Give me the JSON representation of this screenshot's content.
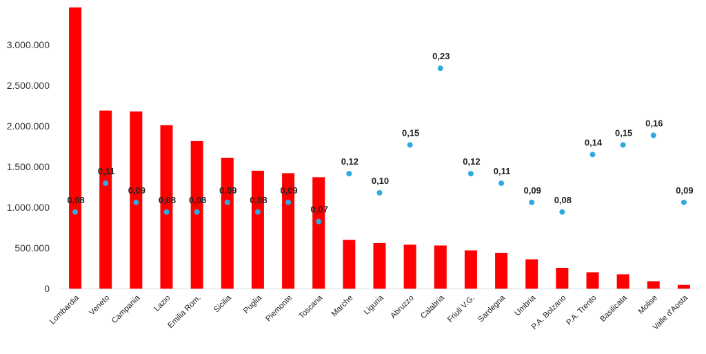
{
  "chart_data": {
    "type": "bar",
    "categories": [
      "Lombardia",
      "Veneto",
      "Campania",
      "Lazio",
      "Emilia Rom.",
      "Sicilia",
      "Puglia",
      "Piemonte",
      "Toscana",
      "Marche",
      "Liguria",
      "Abruzzo",
      "Calabria",
      "Friuli V.G.",
      "Sardegna",
      "Umbria",
      "P.A. Bolzano",
      "P.A. Trento",
      "Basilicata",
      "Molise",
      "Valle d'Aosta"
    ],
    "series": [
      {
        "type": "bar",
        "color": "#ff0000",
        "values": [
          3460000,
          2190000,
          2180000,
          2010000,
          1815000,
          1610000,
          1450000,
          1420000,
          1370000,
          600000,
          560000,
          540000,
          530000,
          470000,
          440000,
          360000,
          255000,
          200000,
          175000,
          90000,
          45000
        ]
      },
      {
        "type": "scatter",
        "color": "#2eaae1",
        "values": [
          0.08,
          0.11,
          0.09,
          0.08,
          0.08,
          0.09,
          0.08,
          0.09,
          0.07,
          0.12,
          0.1,
          0.15,
          0.23,
          0.12,
          0.11,
          0.09,
          0.08,
          0.14,
          0.15,
          0.16,
          0.09
        ],
        "labels": [
          "0,08",
          "0,11",
          "0,09",
          "0,08",
          "0,08",
          "0,09",
          "0,08",
          "0,09",
          "0,07",
          "0,12",
          "0,10",
          "0,15",
          "0,23",
          "0,12",
          "0,11",
          "0,09",
          "0,08",
          "0,14",
          "0,15",
          "0,16",
          "0,09"
        ]
      }
    ],
    "y_ticks": [
      "0",
      "500.000",
      "1.000.000",
      "1.500.000",
      "2.000.000",
      "2.500.000",
      "3.000.000"
    ],
    "y_tick_values": [
      0,
      500000,
      1000000,
      1500000,
      2000000,
      2500000,
      3000000
    ],
    "ylim": [
      0,
      3500000
    ],
    "y2lim": [
      0,
      0.297
    ],
    "grid": false,
    "legend": "none",
    "title": "",
    "xlabel": "",
    "ylabel": ""
  }
}
